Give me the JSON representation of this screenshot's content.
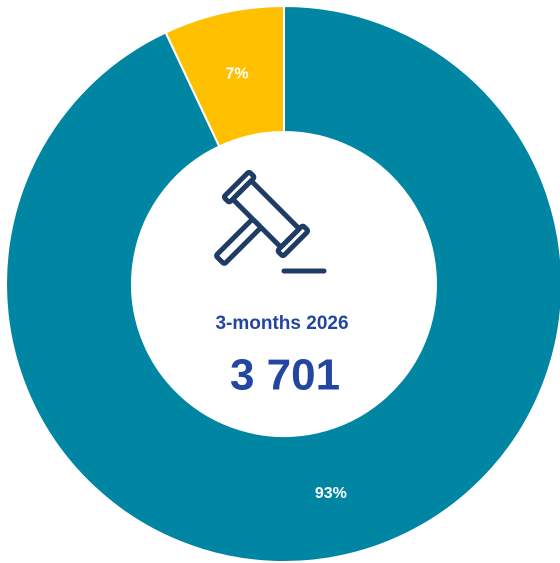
{
  "chart_data": {
    "type": "donut",
    "values": [
      93,
      7
    ],
    "value_labels": [
      "93%",
      "7%"
    ],
    "colors": [
      "#0085a3",
      "#ffc000"
    ],
    "center_label": "3-months 2026",
    "center_value": "3 701"
  }
}
